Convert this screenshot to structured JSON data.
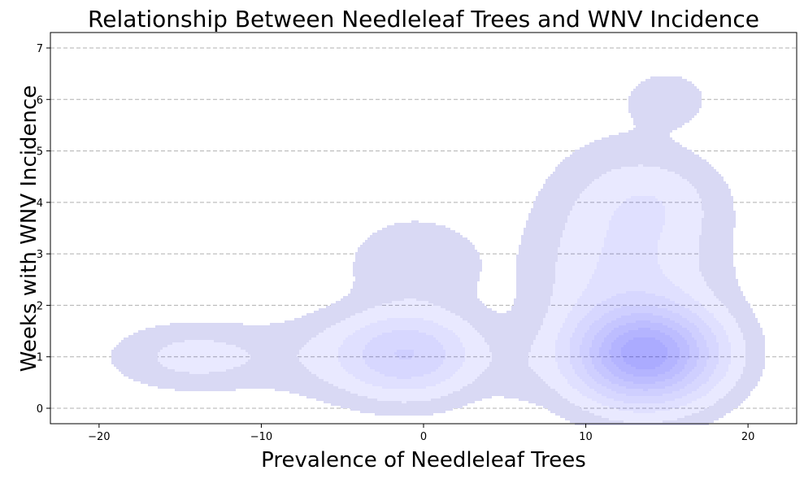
{
  "chart_data": {
    "type": "kde_density",
    "title": "Relationship Between Needleleaf Trees and WNV Incidence",
    "xlabel": "Prevalence of Needleleaf Trees",
    "ylabel": "Weeks with WNV Incidence",
    "xlim": [
      -23,
      23
    ],
    "ylim": [
      -0.3,
      7.3
    ],
    "x_ticks": [
      -20,
      -10,
      0,
      10,
      20
    ],
    "y_ticks": [
      0,
      1,
      2,
      3,
      4,
      5,
      6,
      7
    ],
    "grid": "y-dashed",
    "fill_color": "#0000ff",
    "levels": 9,
    "density_components": [
      {
        "x": 13.7,
        "y": 1.05,
        "sx": 2.6,
        "sy": 0.55,
        "weight": 1.0
      },
      {
        "x": 12.5,
        "y": 2.6,
        "sx": 3.2,
        "sy": 1.3,
        "weight": 0.16
      },
      {
        "x": 14.2,
        "y": 4.0,
        "sx": 2.4,
        "sy": 0.5,
        "weight": 0.07
      },
      {
        "x": 15.0,
        "y": 6.0,
        "sx": 1.4,
        "sy": 0.3,
        "weight": 0.06
      },
      {
        "x": -1.0,
        "y": 1.05,
        "sx": 2.6,
        "sy": 0.5,
        "weight": 0.35
      },
      {
        "x": -0.5,
        "y": 2.8,
        "sx": 2.5,
        "sy": 0.55,
        "weight": 0.06
      },
      {
        "x": -14.0,
        "y": 1.0,
        "sx": 3.0,
        "sy": 0.38,
        "weight": 0.09
      },
      {
        "x": -6.0,
        "y": 1.0,
        "sx": 3.0,
        "sy": 0.5,
        "weight": 0.05
      },
      {
        "x": 6.0,
        "y": 0.8,
        "sx": 1.5,
        "sy": 0.45,
        "weight": 0.03
      }
    ]
  }
}
